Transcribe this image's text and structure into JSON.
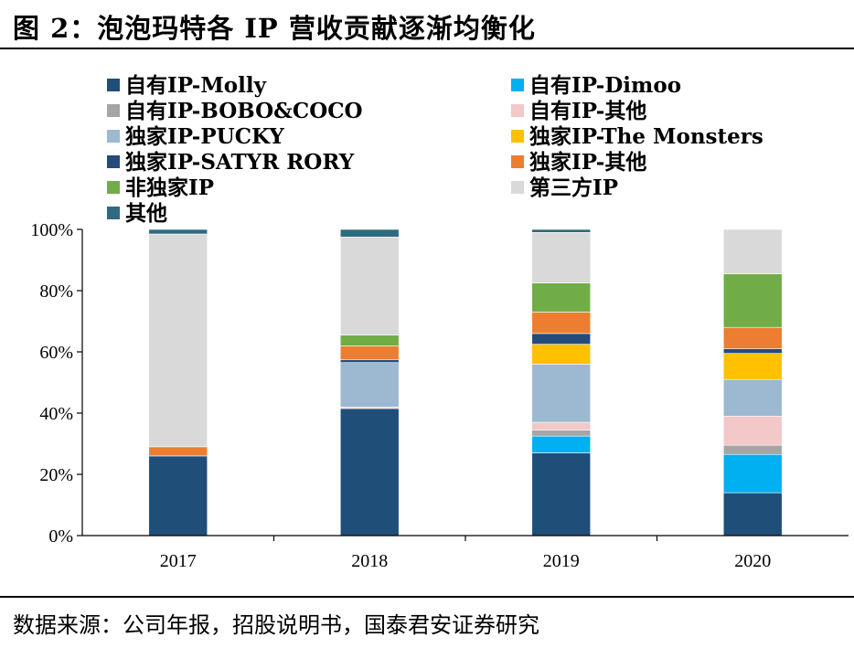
{
  "figure": {
    "title": "图 2：泡泡玛特各 IP 营收贡献逐渐均衡化",
    "source": "数据来源：公司年报，招股说明书，国泰君安证券研究"
  },
  "colors": {
    "molly": "#1f4e79",
    "dimoo": "#00b0f0",
    "bobo": "#a5a5a5",
    "own_other": "#f2c8c8",
    "pucky": "#9cb9d1",
    "monsters": "#ffc000",
    "satyr": "#254b7a",
    "excl_other": "#ed7d31",
    "non_excl": "#70ad47",
    "third": "#d9d9d9",
    "other": "#2e6b80"
  },
  "chart_data": {
    "type": "bar",
    "stacked": true,
    "categories": [
      "2017",
      "2018",
      "2019",
      "2020"
    ],
    "y_ticks": [
      "0%",
      "20%",
      "40%",
      "60%",
      "80%",
      "100%"
    ],
    "ylim": [
      0,
      100
    ],
    "legend_position": "top",
    "series": [
      {
        "name": "自有IP-Molly",
        "color_key": "molly",
        "values": [
          26,
          41.5,
          27,
          14
        ]
      },
      {
        "name": "自有IP-Dimoo",
        "color_key": "dimoo",
        "values": [
          0,
          0,
          5.5,
          12.5
        ]
      },
      {
        "name": "自有IP-BOBO&COCO",
        "color_key": "bobo",
        "values": [
          0,
          0,
          2,
          3
        ]
      },
      {
        "name": "自有IP-其他",
        "color_key": "own_other",
        "values": [
          0,
          0.5,
          2.5,
          9.5
        ]
      },
      {
        "name": "独家IP-PUCKY",
        "color_key": "pucky",
        "values": [
          0,
          14.5,
          19,
          12
        ]
      },
      {
        "name": "独家IP-The Monsters",
        "color_key": "monsters",
        "values": [
          0,
          0,
          6.5,
          8.5
        ]
      },
      {
        "name": "独家IP-SATYR RORY",
        "color_key": "satyr",
        "values": [
          0,
          1,
          3.5,
          1.5
        ]
      },
      {
        "name": "独家IP-其他",
        "color_key": "excl_other",
        "values": [
          3,
          4.5,
          7,
          7
        ]
      },
      {
        "name": "非独家IP",
        "color_key": "non_excl",
        "values": [
          0,
          3.5,
          9.5,
          17.5
        ]
      },
      {
        "name": "第三方IP",
        "color_key": "third",
        "values": [
          69.5,
          32,
          16.5,
          14.5
        ]
      },
      {
        "name": "其他",
        "color_key": "other",
        "values": [
          1.5,
          2.5,
          1,
          0
        ]
      }
    ]
  }
}
